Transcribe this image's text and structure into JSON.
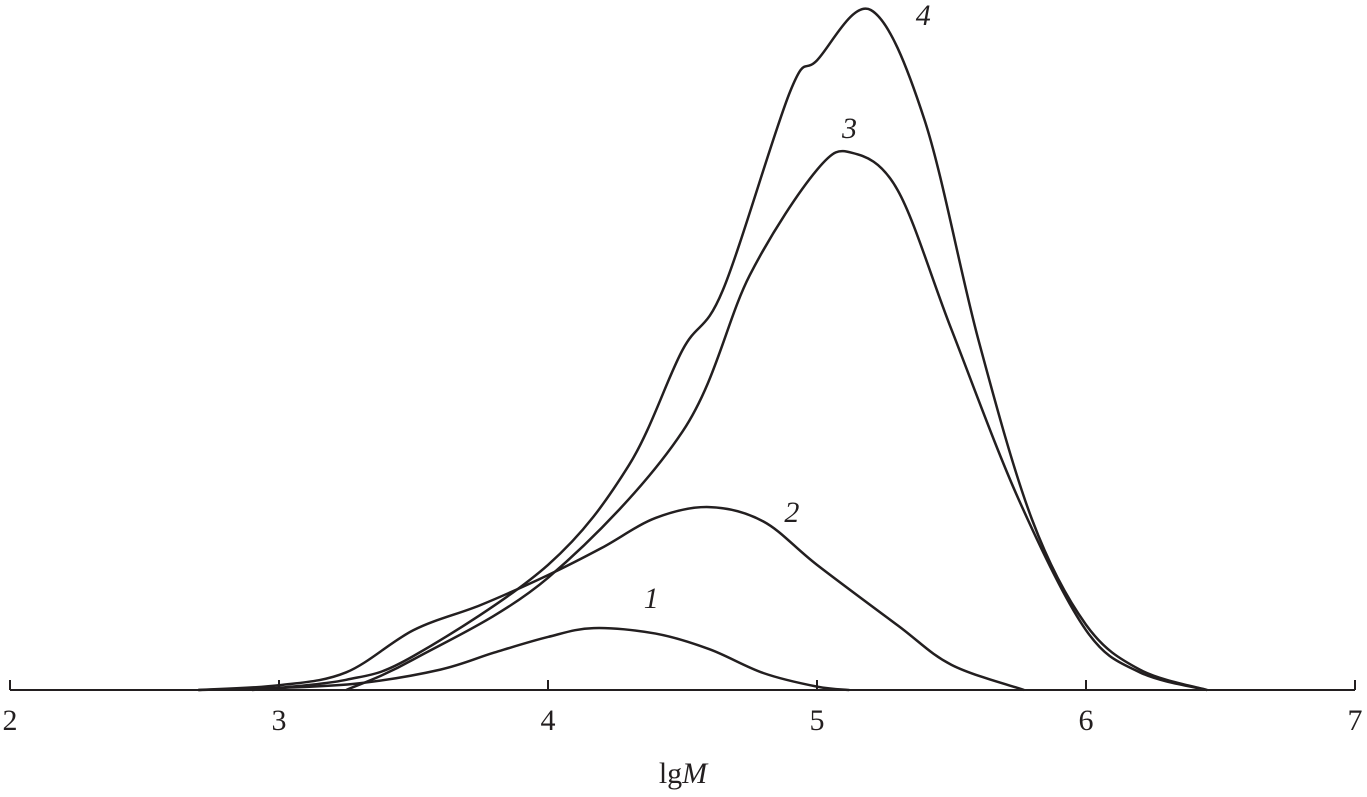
{
  "chart_data": {
    "type": "line",
    "title": "",
    "xlabel": "lgM",
    "xlabel_parts": {
      "prefix": "lg",
      "italic": "M"
    },
    "ylabel": "",
    "xlim": [
      2,
      7
    ],
    "ylim": [
      0,
      100
    ],
    "x_ticks": [
      "2",
      "3",
      "4",
      "5",
      "6",
      "7"
    ],
    "grid": false,
    "legend": "none",
    "line_color": "#231f20",
    "series": [
      {
        "label": "1",
        "points": [
          [
            2.7,
            0
          ],
          [
            3.0,
            0.3
          ],
          [
            3.3,
            1
          ],
          [
            3.6,
            3
          ],
          [
            3.8,
            5.5
          ],
          [
            4.0,
            7.8
          ],
          [
            4.17,
            9.1
          ],
          [
            4.4,
            8.3
          ],
          [
            4.6,
            6
          ],
          [
            4.8,
            2.5
          ],
          [
            5.0,
            0.5
          ],
          [
            5.12,
            0
          ]
        ]
      },
      {
        "label": "2",
        "points": [
          [
            2.7,
            0
          ],
          [
            3.0,
            0.7
          ],
          [
            3.25,
            2.6
          ],
          [
            3.5,
            8.8
          ],
          [
            3.75,
            12.5
          ],
          [
            4.0,
            16.9
          ],
          [
            4.2,
            20.9
          ],
          [
            4.4,
            25.3
          ],
          [
            4.6,
            26.9
          ],
          [
            4.8,
            24.8
          ],
          [
            5.0,
            18.4
          ],
          [
            5.3,
            9.5
          ],
          [
            5.5,
            3.7
          ],
          [
            5.77,
            0
          ]
        ]
      },
      {
        "label": "3",
        "points": [
          [
            3.25,
            0
          ],
          [
            3.5,
            4.5
          ],
          [
            4.0,
            16.5
          ],
          [
            4.5,
            38
          ],
          [
            4.75,
            61
          ],
          [
            5.0,
            76.5
          ],
          [
            5.13,
            79
          ],
          [
            5.3,
            73.5
          ],
          [
            5.5,
            53
          ],
          [
            5.75,
            28
          ],
          [
            6.0,
            8.8
          ],
          [
            6.2,
            2.6
          ],
          [
            6.45,
            0
          ]
        ]
      },
      {
        "label": "4",
        "points": [
          [
            2.9,
            0
          ],
          [
            3.25,
            1.5
          ],
          [
            3.5,
            5
          ],
          [
            4.0,
            18.4
          ],
          [
            4.3,
            33
          ],
          [
            4.5,
            50
          ],
          [
            4.65,
            58.8
          ],
          [
            4.9,
            88
          ],
          [
            5.0,
            92.6
          ],
          [
            5.2,
            100
          ],
          [
            5.4,
            83.8
          ],
          [
            5.6,
            51.5
          ],
          [
            5.8,
            25
          ],
          [
            6.0,
            9.6
          ],
          [
            6.2,
            3
          ],
          [
            6.45,
            0
          ]
        ]
      }
    ]
  }
}
